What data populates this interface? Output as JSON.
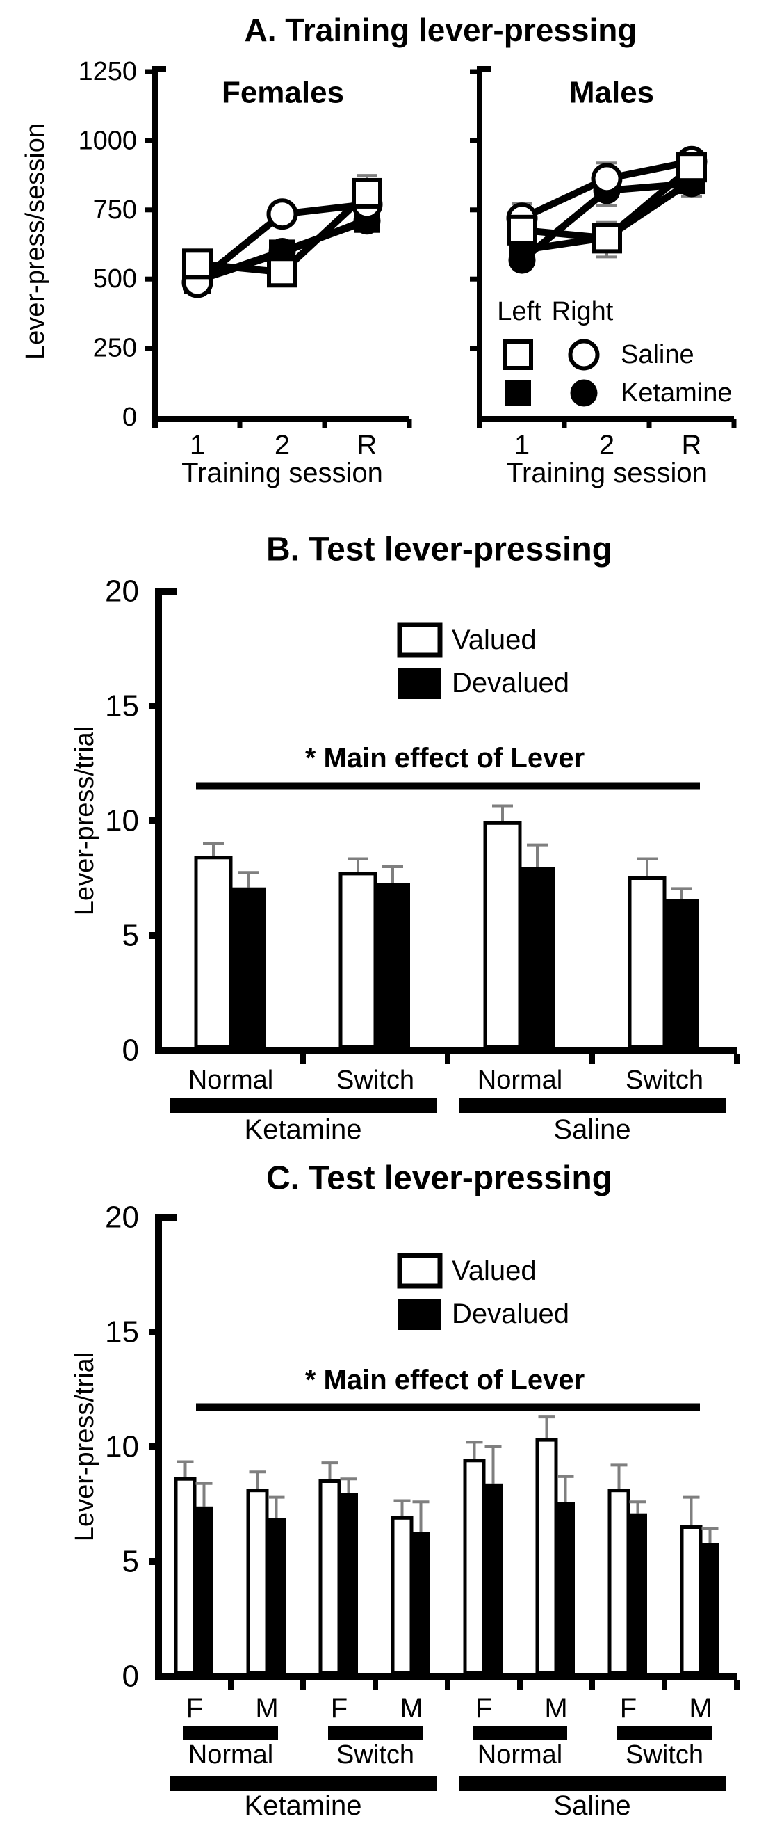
{
  "colors": {
    "ink": "#000000",
    "error_bar": "#7f7f7f",
    "open_fill": "#ffffff"
  },
  "chart_data": [
    {
      "panel": "A",
      "type": "line",
      "title": "A. Training lever-pressing",
      "ylabel": "Lever-press/session",
      "xlabel": "Training session",
      "ylim": [
        0,
        1250
      ],
      "yticks": [
        0,
        250,
        500,
        750,
        1000,
        1250
      ],
      "categories": [
        "1",
        "2",
        "R"
      ],
      "legend": {
        "col_left": "Left",
        "col_right": "Right",
        "row_open": "Saline",
        "row_filled": "Ketamine"
      },
      "subplots": [
        {
          "name": "Females",
          "series": [
            {
              "name": "Right Ketamine",
              "marker": "filled-circle",
              "values": [
                495,
                600,
                710
              ],
              "err_up": [
                0,
                0,
                0
              ],
              "err_down": [
                0,
                0,
                0
              ]
            },
            {
              "name": "Left Ketamine",
              "marker": "filled-square",
              "values": [
                495,
                595,
                715
              ],
              "err_up": [
                0,
                38,
                0
              ],
              "err_down": [
                0,
                0,
                0
              ]
            },
            {
              "name": "Right Saline",
              "marker": "open-circle",
              "values": [
                488,
                735,
                770
              ],
              "err_up": [
                25,
                25,
                0
              ],
              "err_down": [
                0,
                0,
                0
              ]
            },
            {
              "name": "Left Saline",
              "marker": "open-square",
              "values": [
                555,
                525,
                810
              ],
              "err_up": [
                20,
                20,
                65
              ],
              "err_down": [
                0,
                0,
                0
              ]
            }
          ]
        },
        {
          "name": "Males",
          "series": [
            {
              "name": "Right Ketamine",
              "marker": "filled-circle",
              "values": [
                568,
                820,
                845
              ],
              "err_up": [
                0,
                0,
                0
              ],
              "err_down": [
                0,
                53,
                45
              ]
            },
            {
              "name": "Left Ketamine",
              "marker": "filled-square",
              "values": [
                605,
                650,
                855
              ],
              "err_up": [
                0,
                0,
                0
              ],
              "err_down": [
                0,
                0,
                0
              ]
            },
            {
              "name": "Right Saline",
              "marker": "open-circle",
              "values": [
                720,
                863,
                925
              ],
              "err_up": [
                52,
                57,
                20
              ],
              "err_down": [
                0,
                0,
                0
              ]
            },
            {
              "name": "Left Saline",
              "marker": "open-square",
              "values": [
                677,
                648,
                905
              ],
              "err_up": [
                30,
                57,
                35
              ],
              "err_down": [
                0,
                68,
                0
              ]
            }
          ]
        }
      ]
    },
    {
      "panel": "B",
      "type": "bar",
      "title": "B. Test lever-pressing",
      "ylabel": "Lever-press/trial",
      "ylim": [
        0,
        20
      ],
      "yticks": [
        0,
        5,
        10,
        15,
        20
      ],
      "annotation": "* Main effect of Lever",
      "legend": {
        "open": "Valued",
        "filled": "Devalued"
      },
      "categories": [
        "Normal",
        "Switch",
        "Normal",
        "Switch"
      ],
      "group_labels": [
        "Ketamine",
        "Saline"
      ],
      "series": [
        {
          "name": "Valued",
          "values": [
            8.4,
            7.7,
            9.9,
            7.5
          ],
          "err_up": [
            0.6,
            0.65,
            0.75,
            0.85
          ]
        },
        {
          "name": "Devalued",
          "values": [
            7.1,
            7.3,
            8.0,
            6.6
          ],
          "err_up": [
            0.65,
            0.7,
            0.95,
            0.45
          ]
        }
      ]
    },
    {
      "panel": "C",
      "type": "bar",
      "title": "C. Test lever-pressing",
      "ylabel": "Lever-press/trial",
      "ylim": [
        0,
        20
      ],
      "yticks": [
        0,
        5,
        10,
        15,
        20
      ],
      "annotation": "* Main effect of Lever",
      "legend": {
        "open": "Valued",
        "filled": "Devalued"
      },
      "sex_labels": [
        "F",
        "M",
        "F",
        "M",
        "F",
        "M",
        "F",
        "M"
      ],
      "categories": [
        "Normal",
        "Switch",
        "Normal",
        "Switch"
      ],
      "group_labels": [
        "Ketamine",
        "Saline"
      ],
      "series": [
        {
          "name": "Valued",
          "values": [
            8.6,
            8.1,
            8.5,
            6.9,
            9.4,
            10.3,
            8.1,
            6.5
          ],
          "err_up": [
            0.75,
            0.8,
            0.8,
            0.75,
            0.8,
            1.0,
            1.1,
            1.3
          ]
        },
        {
          "name": "Devalued",
          "values": [
            7.4,
            6.9,
            8.0,
            6.3,
            8.4,
            7.6,
            7.1,
            5.8
          ],
          "err_up": [
            1.0,
            0.9,
            0.6,
            1.3,
            1.6,
            1.1,
            0.5,
            0.65
          ]
        }
      ]
    }
  ]
}
